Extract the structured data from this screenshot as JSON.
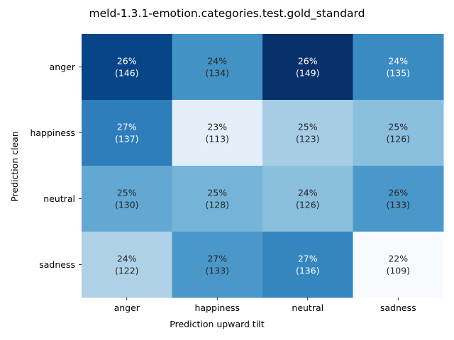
{
  "chart_data": {
    "type": "heatmap",
    "title": "meld-1.3.1-emotion.categories.test.gold_standard",
    "xlabel": "Prediction upward tilt",
    "ylabel": "Prediction clean",
    "x_categories": [
      "anger",
      "happiness",
      "neutral",
      "sadness"
    ],
    "y_categories": [
      "anger",
      "happiness",
      "neutral",
      "sadness"
    ],
    "counts": [
      [
        146,
        134,
        149,
        135
      ],
      [
        137,
        113,
        123,
        126
      ],
      [
        130,
        128,
        126,
        133
      ],
      [
        122,
        133,
        136,
        109
      ]
    ],
    "percent_labels": [
      [
        "26%",
        "24%",
        "26%",
        "24%"
      ],
      [
        "27%",
        "23%",
        "25%",
        "25%"
      ],
      [
        "25%",
        "25%",
        "24%",
        "26%"
      ],
      [
        "24%",
        "27%",
        "27%",
        "22%"
      ]
    ],
    "colormap": "Blues",
    "colorbar": false,
    "grid": false
  }
}
